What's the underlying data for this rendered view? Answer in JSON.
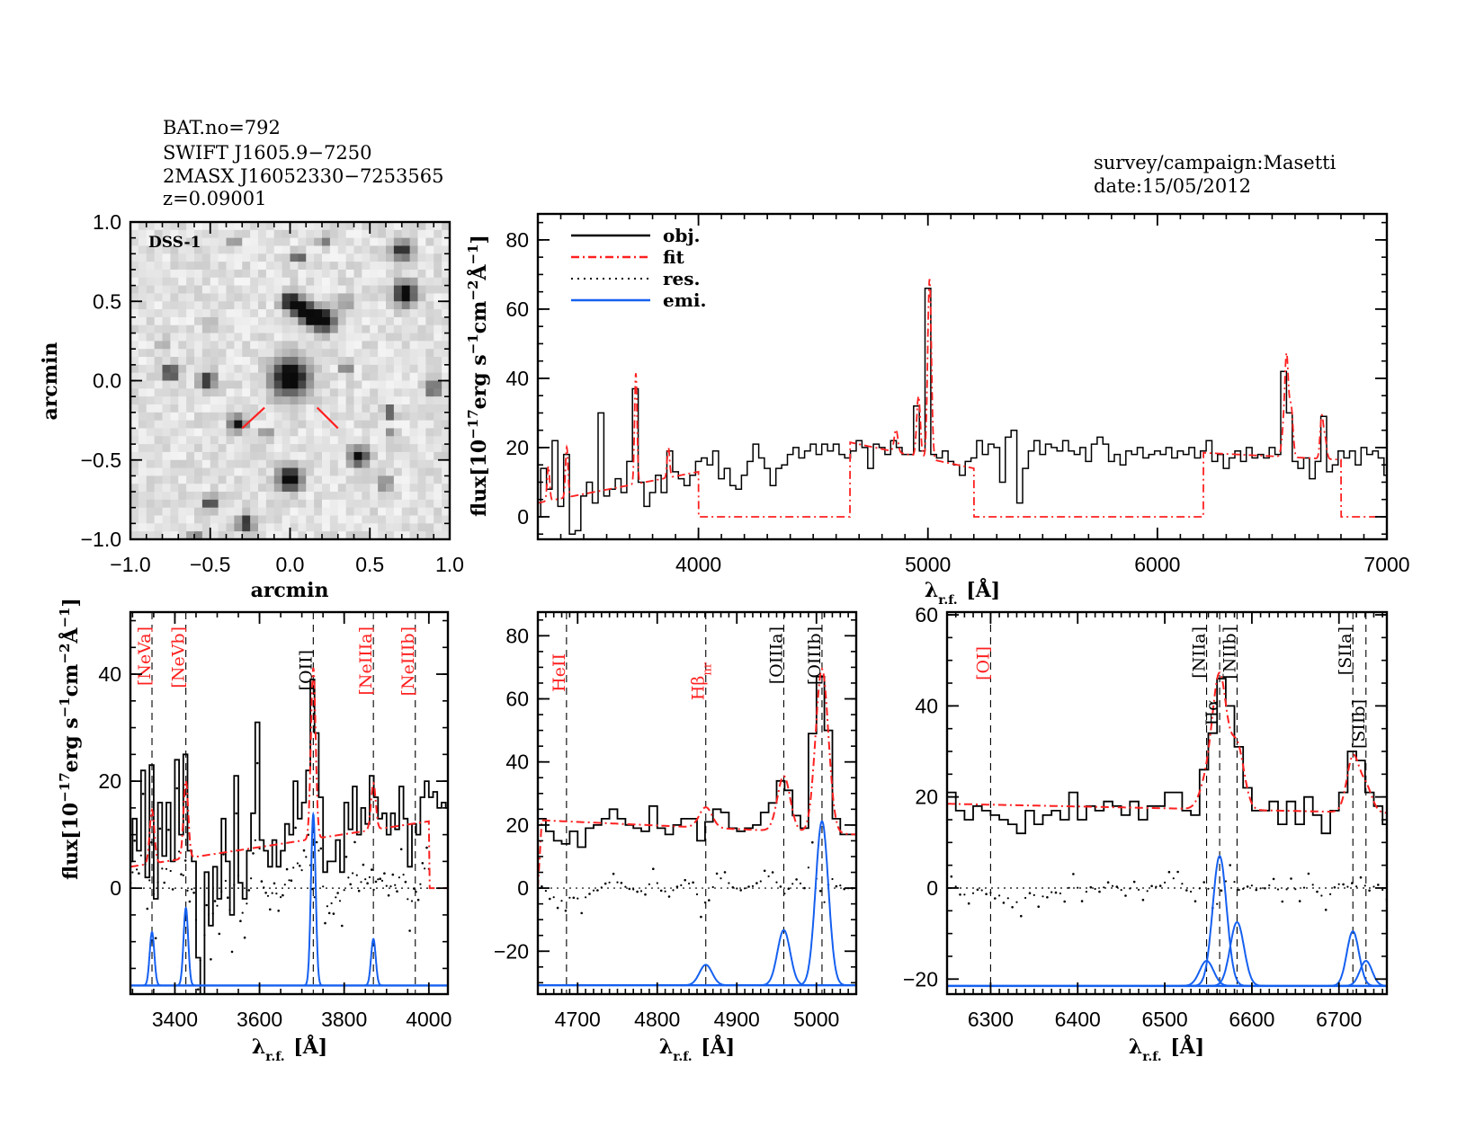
{
  "header": {
    "info_lines": [
      "BAT.no=792",
      "SWIFT J1605.9−7250",
      "2MASX J16052330−7253565",
      "z=0.09001"
    ],
    "survey": "survey/campaign:Masetti",
    "date": "date:15/05/2012"
  },
  "colors": {
    "obj": "#000000",
    "fit": "#ff2020",
    "res": "#000000",
    "emi": "#1560f0",
    "unfitted_label": "#ff2020",
    "fitted_label": "#000000"
  },
  "flux_label": [
    {
      "t": "flux[10"
    },
    {
      "t": "−17",
      "sup": true
    },
    {
      "t": "erg s"
    },
    {
      "t": "−1",
      "sup": true
    },
    {
      "t": "cm"
    },
    {
      "t": "−2",
      "sup": true
    },
    {
      "t": "Å"
    },
    {
      "t": "−1",
      "sup": true
    },
    {
      "t": "]"
    }
  ],
  "wavelength_label": {
    "main": "λ",
    "sub": "r.f.",
    "unit": " [Å]"
  },
  "emission_lines": [
    {
      "label": "[NeVa]",
      "wavelength": 3346,
      "fitted": false,
      "amp": 10,
      "sigma": 5.5
    },
    {
      "label": "[NeVb]",
      "wavelength": 3426,
      "fitted": false,
      "amp": 14.5,
      "sigma": 5.5
    },
    {
      "label": "[OII]",
      "wavelength": 3727,
      "fitted": true,
      "amp": 32,
      "sigma": 5.5
    },
    {
      "label": "[NeIIIa]",
      "wavelength": 3869,
      "fitted": false,
      "amp": 8.7,
      "sigma": 5.5
    },
    {
      "label": "[NeIIIb]",
      "wavelength": 3968,
      "fitted": false,
      "amp": 0,
      "sigma": 5.5
    },
    {
      "label": "HeII",
      "wavelength": 4686,
      "fitted": false,
      "amp": 0,
      "sigma": 8
    },
    {
      "label": "Hβ",
      "sub": "nr",
      "wavelength": 4861,
      "fitted": false,
      "amp": 6.5,
      "sigma": 8
    },
    {
      "label": "[OIIIa]",
      "wavelength": 4959,
      "fitted": true,
      "amp": 17.5,
      "sigma": 8
    },
    {
      "label": "[OIIIb]",
      "wavelength": 5007,
      "fitted": true,
      "amp": 52,
      "sigma": 8
    },
    {
      "label": "[OI]",
      "wavelength": 6300,
      "fitted": false,
      "amp": 0,
      "sigma": 8
    },
    {
      "label": "[NIIa]",
      "wavelength": 6548,
      "fitted": true,
      "amp": 5.5,
      "sigma": 8
    },
    {
      "label": "Hα",
      "wavelength": 6563,
      "fitted": true,
      "amp": 28.5,
      "sigma": 8
    },
    {
      "label": "[NIIb]",
      "wavelength": 6583,
      "fitted": true,
      "amp": 14,
      "sigma": 8
    },
    {
      "label": "[SIIa]",
      "wavelength": 6716,
      "fitted": true,
      "amp": 12,
      "sigma": 7
    },
    {
      "label": "[SIIb]",
      "wavelength": 6731,
      "fitted": true,
      "amp": 5.5,
      "sigma": 7
    }
  ],
  "chart_data": [
    {
      "type": "image",
      "inset_label": "DSS-1",
      "xlabel": "arcmin",
      "ylabel": "arcmin",
      "xlim": [
        -1,
        1
      ],
      "ylim": [
        -1,
        1
      ],
      "x_ticks": [
        -1,
        -0.5,
        0,
        0.5,
        1
      ],
      "y_ticks": [
        -1,
        -0.5,
        0,
        0.5,
        1
      ],
      "x_minor": 0.1,
      "y_minor": 0.1,
      "colormap": "grayscale inverted",
      "source_markers": "two red ticks pointing at the central galaxy"
    },
    {
      "type": "line",
      "xlim": [
        3300,
        7000
      ],
      "ylim": [
        -6.5,
        87.5
      ],
      "x_ticks": [
        4000,
        5000,
        6000,
        7000
      ],
      "x_minor": 100,
      "y_ticks": [
        0,
        20,
        40,
        60,
        80
      ],
      "y_minor": 5,
      "legend": {
        "position": "top-left",
        "entries": [
          {
            "key": "obj",
            "label": "obj.",
            "style": "solid"
          },
          {
            "key": "fit",
            "label": "fit",
            "style": "dash-dot"
          },
          {
            "key": "res",
            "label": "res.",
            "style": "dotted"
          },
          {
            "key": "emi",
            "label": "emi.",
            "style": "solid-blue"
          }
        ]
      },
      "obj": {
        "wavelength_start": 3300,
        "wavelength_step": 25,
        "flux": [
          0,
          14,
          8,
          22,
          3,
          18,
          -5,
          -4,
          6,
          10,
          4,
          30,
          6,
          8,
          11,
          7,
          16,
          37,
          10,
          3,
          7,
          12,
          7,
          19,
          13,
          11,
          9,
          12,
          16,
          17,
          15,
          19,
          11,
          14,
          9,
          8,
          12,
          16,
          21,
          17,
          14,
          9,
          14,
          15,
          18,
          20,
          17,
          19,
          21,
          18,
          21,
          19,
          21,
          18,
          17,
          19,
          22,
          20,
          14,
          21,
          20,
          18,
          22,
          20,
          18,
          18,
          32,
          19,
          66,
          18,
          17,
          19,
          16,
          15,
          12,
          16,
          17,
          22,
          18,
          21,
          20,
          10,
          23,
          25,
          4,
          14,
          19,
          22,
          18,
          21,
          20,
          19,
          22,
          19,
          18,
          20,
          16,
          21,
          23,
          21,
          16,
          18,
          15,
          19,
          18,
          20,
          17,
          18,
          19,
          18,
          20,
          17,
          19,
          18,
          20,
          17,
          19,
          22,
          16,
          18,
          14,
          17,
          19,
          16,
          20,
          17,
          18,
          17,
          20,
          18,
          42,
          30,
          16,
          14,
          17,
          11,
          16,
          29,
          13,
          15,
          19,
          17,
          19,
          15,
          20,
          18,
          19,
          17,
          12
        ]
      },
      "fit_continuum": [
        [
          3300,
          4
        ],
        [
          4000,
          13
        ],
        [
          4001,
          0
        ],
        [
          4660,
          0
        ],
        [
          4661,
          21.5
        ],
        [
          5200,
          14
        ],
        [
          5201,
          0
        ],
        [
          6200,
          0
        ],
        [
          6201,
          18.5
        ],
        [
          6800,
          16.5
        ],
        [
          6801,
          0
        ],
        [
          7000,
          0
        ]
      ]
    },
    {
      "type": "line",
      "xlim": [
        3295,
        4045
      ],
      "ylim": [
        -19.8,
        51.6
      ],
      "x_ticks": [
        3400,
        3600,
        3800,
        4000
      ],
      "x_minor": 50,
      "y_ticks": [
        0,
        20,
        40
      ],
      "y_minor": 5,
      "emission_offset": -18.2,
      "obj": {
        "wavelength_start": 3295,
        "wavelength_step": 10,
        "flux": [
          5,
          13,
          7,
          22,
          2,
          23,
          -2,
          16,
          6,
          16,
          5,
          24,
          10,
          25,
          7,
          5,
          -13,
          -20,
          3,
          -7,
          4,
          -2,
          13,
          5,
          -5,
          21,
          1,
          -2,
          7,
          14,
          31,
          9,
          7,
          4,
          9,
          4,
          7,
          12,
          10,
          20,
          13,
          16,
          22,
          39,
          29,
          17,
          3,
          5,
          5,
          9,
          3,
          16,
          11,
          19,
          10,
          15,
          12,
          21,
          17,
          13,
          14,
          10,
          14,
          11,
          19,
          13,
          4,
          12,
          10,
          17,
          20,
          17,
          18,
          15,
          16,
          15
        ]
      },
      "fit_continuum": [
        [
          3295,
          4
        ],
        [
          4000,
          12.5
        ],
        [
          4002,
          0
        ],
        [
          4045,
          0
        ]
      ]
    },
    {
      "type": "line",
      "xlim": [
        4650,
        5050
      ],
      "ylim": [
        -33.6,
        87.5
      ],
      "x_ticks": [
        4700,
        4800,
        4900,
        5000
      ],
      "x_minor": 10,
      "y_ticks": [
        -20,
        0,
        20,
        40,
        60,
        80
      ],
      "y_minor": 5,
      "emission_offset": -30.8,
      "obj": {
        "wavelength_start": 4655,
        "wavelength_step": 10,
        "flux": [
          22,
          18,
          15,
          14,
          18,
          13,
          19,
          20,
          22,
          25,
          22,
          20,
          19,
          18,
          26,
          19,
          17,
          20,
          22,
          22,
          15,
          21,
          25,
          24,
          19,
          18,
          19,
          20,
          24,
          27,
          34,
          31,
          23,
          19,
          49,
          67,
          50,
          22,
          17,
          17
        ]
      },
      "fit_continuum": [
        [
          4650,
          0
        ],
        [
          4655,
          21.5
        ],
        [
          5050,
          17
        ]
      ]
    },
    {
      "type": "line",
      "xlim": [
        6250,
        6755
      ],
      "ylim": [
        -23.3,
        60.6
      ],
      "x_ticks": [
        6300,
        6400,
        6500,
        6600,
        6700
      ],
      "x_minor": 10,
      "y_ticks": [
        -20,
        0,
        20,
        40,
        60
      ],
      "y_minor": 5,
      "emission_offset": -21.5,
      "obj": {
        "wavelength_start": 6255,
        "wavelength_step": 10,
        "flux": [
          21,
          17,
          15,
          18,
          17,
          16,
          15,
          14,
          12,
          17,
          14,
          16,
          17,
          15,
          21,
          15,
          18,
          17,
          19,
          18,
          16,
          19,
          15,
          18,
          18,
          21,
          21,
          17,
          16,
          26,
          34,
          46,
          40,
          31,
          22,
          17,
          17,
          19,
          14,
          19,
          14,
          20,
          16,
          12,
          17,
          21,
          30,
          28,
          21,
          18,
          14
        ]
      },
      "fit_continuum": [
        [
          6250,
          18.5
        ],
        [
          6755,
          16.5
        ]
      ]
    }
  ]
}
